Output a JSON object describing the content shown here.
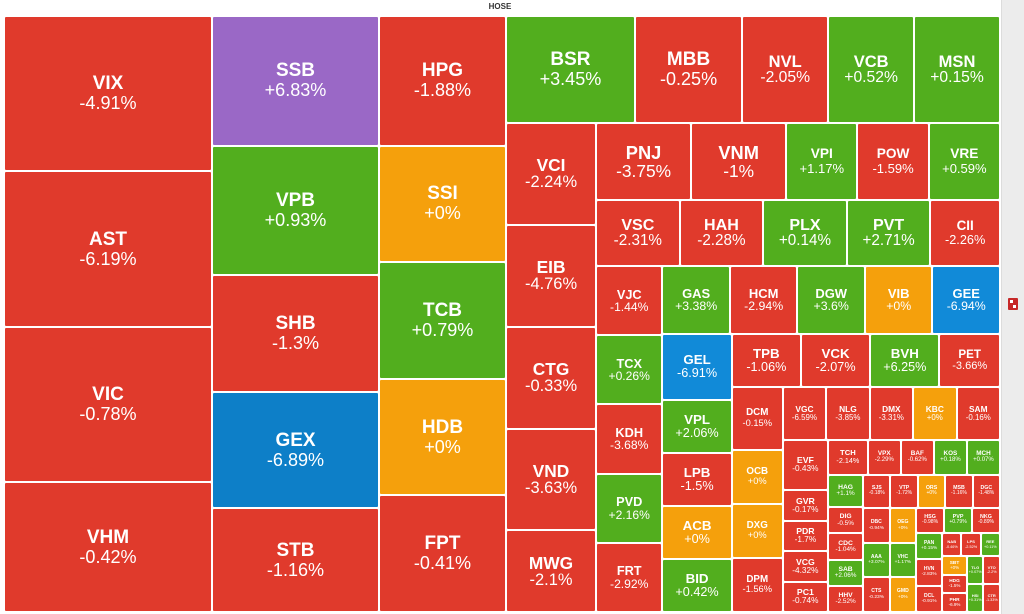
{
  "chart_data": {
    "type": "treemap",
    "title": "HOSE",
    "colors": {
      "down": "#e03a2c",
      "up": "#52ae1e",
      "flat": "#f5a00c",
      "ceiling": "#9a68c6",
      "floor": "#0d7fc8",
      "floor_alt": "#118ad8"
    },
    "tiles": [
      {
        "symbol": "VIX",
        "change": "-4.91%",
        "status": "down",
        "col": 0,
        "weight": 6
      },
      {
        "symbol": "AST",
        "change": "-6.19%",
        "status": "down",
        "col": 0,
        "weight": 6
      },
      {
        "symbol": "VIC",
        "change": "-0.78%",
        "status": "down",
        "col": 0,
        "weight": 6
      },
      {
        "symbol": "VHM",
        "change": "-0.42%",
        "status": "down",
        "col": 0,
        "weight": 5
      },
      {
        "symbol": "SSB",
        "change": "+6.83%",
        "status": "ceiling",
        "col": 1,
        "weight": 5
      },
      {
        "symbol": "VPB",
        "change": "+0.93%",
        "status": "up",
        "col": 1,
        "weight": 5
      },
      {
        "symbol": "SHB",
        "change": "-1.3%",
        "status": "down",
        "col": 1,
        "weight": 4.5
      },
      {
        "symbol": "GEX",
        "change": "-6.89%",
        "status": "floor",
        "col": 1,
        "weight": 4.5
      },
      {
        "symbol": "STB",
        "change": "-1.16%",
        "status": "down",
        "col": 1,
        "weight": 4
      },
      {
        "symbol": "HPG",
        "change": "-1.88%",
        "status": "down",
        "col": 2,
        "weight": 5
      },
      {
        "symbol": "SSI",
        "change": "+0%",
        "status": "flat",
        "col": 2,
        "weight": 4.5
      },
      {
        "symbol": "TCB",
        "change": "+0.79%",
        "status": "up",
        "col": 2,
        "weight": 4.5
      },
      {
        "symbol": "HDB",
        "change": "+0%",
        "status": "flat",
        "col": 2,
        "weight": 4.5
      },
      {
        "symbol": "FPT",
        "change": "-0.41%",
        "status": "down",
        "col": 2,
        "weight": 4.5
      },
      {
        "symbol": "BSR",
        "change": "+3.45%",
        "status": "up",
        "col": 3,
        "weight": 3
      },
      {
        "symbol": "MBB",
        "change": "-0.25%",
        "status": "down",
        "col": 3,
        "weight": 2.5
      },
      {
        "symbol": "NVL",
        "change": "-2.05%",
        "status": "down",
        "col": 3,
        "weight": 2
      },
      {
        "symbol": "VCB",
        "change": "+0.52%",
        "status": "up",
        "col": 3,
        "weight": 2
      },
      {
        "symbol": "MSN",
        "change": "+0.15%",
        "status": "up",
        "col": 3,
        "weight": 2
      },
      {
        "symbol": "VCI",
        "change": "-2.24%",
        "status": "down",
        "col": 3,
        "weight": 2
      },
      {
        "symbol": "EIB",
        "change": "-4.76%",
        "status": "down",
        "col": 3,
        "weight": 2
      },
      {
        "symbol": "CTG",
        "change": "-0.33%",
        "status": "down",
        "col": 3,
        "weight": 2
      },
      {
        "symbol": "VND",
        "change": "-3.63%",
        "status": "down",
        "col": 3,
        "weight": 2
      },
      {
        "symbol": "MWG",
        "change": "-2.1%",
        "status": "down",
        "col": 3,
        "weight": 1.6
      },
      {
        "symbol": "VPI",
        "change": "+1.17%",
        "status": "up",
        "col": 3,
        "weight": 1.2
      },
      {
        "symbol": "POW",
        "change": "-1.59%",
        "status": "down",
        "col": 3,
        "weight": 1.2
      },
      {
        "symbol": "VRE",
        "change": "+0.59%",
        "status": "up",
        "col": 3,
        "weight": 1.2
      },
      {
        "symbol": "VSC",
        "change": "-2.31%",
        "status": "down",
        "col": 3,
        "weight": 1.2
      },
      {
        "symbol": "HAH",
        "change": "-2.28%",
        "status": "down",
        "col": 3,
        "weight": 1.2
      },
      {
        "symbol": "PLX",
        "change": "+0.14%",
        "status": "up",
        "col": 3,
        "weight": 1.2
      },
      {
        "symbol": "PNJ",
        "change": "-3.75%",
        "status": "down",
        "col": 3,
        "weight": 1.6
      },
      {
        "symbol": "CII",
        "change": "-2.26%",
        "status": "down",
        "col": 3,
        "weight": 1
      },
      {
        "symbol": "VJC",
        "change": "-1.44%",
        "status": "down",
        "col": 3,
        "weight": 1
      },
      {
        "symbol": "TCX",
        "change": "+0.26%",
        "status": "up",
        "col": 3,
        "weight": 1
      },
      {
        "symbol": "KDH",
        "change": "-3.68%",
        "status": "down",
        "col": 3,
        "weight": 1
      },
      {
        "symbol": "PVD",
        "change": "+2.16%",
        "status": "up",
        "col": 3,
        "weight": 1
      },
      {
        "symbol": "FRT",
        "change": "-2.92%",
        "status": "down",
        "col": 3,
        "weight": 1
      },
      {
        "symbol": "VNM",
        "change": "-1%",
        "status": "down",
        "col": 3,
        "weight": 1.6
      },
      {
        "symbol": "GAS",
        "change": "+3.38%",
        "status": "up",
        "col": 3,
        "weight": 1
      },
      {
        "symbol": "HCM",
        "change": "-2.94%",
        "status": "down",
        "col": 3,
        "weight": 1
      },
      {
        "symbol": "PET",
        "change": "-3.66%",
        "status": "down",
        "col": 3,
        "weight": 0.7
      },
      {
        "symbol": "DCM",
        "change": "-0.15%",
        "status": "down",
        "col": 3,
        "weight": 0.7
      },
      {
        "symbol": "OCB",
        "change": "+0%",
        "status": "flat",
        "col": 3,
        "weight": 0.6
      },
      {
        "symbol": "DXG",
        "change": "+0%",
        "status": "flat",
        "col": 3,
        "weight": 0.6
      },
      {
        "symbol": "DPM",
        "change": "-1.56%",
        "status": "down",
        "col": 3,
        "weight": 0.6
      },
      {
        "symbol": "PVT",
        "change": "+2.71%",
        "status": "up",
        "col": 3,
        "weight": 1.2
      },
      {
        "symbol": "DGW",
        "change": "+3.6%",
        "status": "up",
        "col": 3,
        "weight": 1
      },
      {
        "symbol": "VPL",
        "change": "+2.06%",
        "status": "up",
        "col": 3,
        "weight": 0.8
      },
      {
        "symbol": "VGC",
        "change": "-6.59%",
        "status": "down",
        "col": 3,
        "weight": 0.5
      },
      {
        "symbol": "NLG",
        "change": "-3.85%",
        "status": "down",
        "col": 3,
        "weight": 0.5
      },
      {
        "symbol": "LPB",
        "change": "-1.5%",
        "status": "down",
        "col": 3,
        "weight": 0.8
      },
      {
        "symbol": "DMX",
        "change": "-3.31%",
        "status": "down",
        "col": 3,
        "weight": 0.5
      },
      {
        "symbol": "ACB",
        "change": "+0%",
        "status": "flat",
        "col": 3,
        "weight": 0.8
      },
      {
        "symbol": "VIB",
        "change": "+0%",
        "status": "flat",
        "col": 3,
        "weight": 1
      },
      {
        "symbol": "BID",
        "change": "+0.42%",
        "status": "up",
        "col": 3,
        "weight": 0.8
      },
      {
        "symbol": "TPB",
        "change": "-1.06%",
        "status": "down",
        "col": 3,
        "weight": 0.8
      },
      {
        "symbol": "KBC",
        "change": "+0%",
        "status": "flat",
        "col": 3,
        "weight": 0.5
      },
      {
        "symbol": "VCK",
        "change": "-2.07%",
        "status": "down",
        "col": 3,
        "weight": 0.8
      },
      {
        "symbol": "SAM",
        "change": "-0.16%",
        "status": "down",
        "col": 3,
        "weight": 0.5
      },
      {
        "symbol": "EVF",
        "change": "-0.43%",
        "status": "down",
        "col": 3,
        "weight": 0.5
      },
      {
        "symbol": "GEE",
        "change": "-6.94%",
        "status": "floor_alt",
        "col": 3,
        "weight": 1
      },
      {
        "symbol": "GEL",
        "change": "-6.91%",
        "status": "floor_alt",
        "col": 3,
        "weight": 1
      },
      {
        "symbol": "BVH",
        "change": "+6.25%",
        "status": "up",
        "col": 3,
        "weight": 0.8
      },
      {
        "symbol": "GVR",
        "change": "-0.17%",
        "status": "down",
        "col": 3,
        "weight": 0.3
      },
      {
        "symbol": "PDR",
        "change": "-1.7%",
        "status": "down",
        "col": 3,
        "weight": 0.3
      },
      {
        "symbol": "VCG",
        "change": "-4.32%",
        "status": "down",
        "col": 3,
        "weight": 0.3
      },
      {
        "symbol": "PC1",
        "change": "-0.74%",
        "status": "down",
        "col": 3,
        "weight": 0.3
      },
      {
        "symbol": "TCH",
        "change": "-2.14%",
        "status": "down",
        "col": 3,
        "weight": 0.3
      },
      {
        "symbol": "VPX",
        "change": "-2.29%",
        "status": "down",
        "col": 3,
        "weight": 0.25
      },
      {
        "symbol": "DIG",
        "change": "-0.5%",
        "status": "down",
        "col": 3,
        "weight": 0.2
      },
      {
        "symbol": "CDC",
        "change": "-1.04%",
        "status": "down",
        "col": 3,
        "weight": 0.2
      },
      {
        "symbol": "SAB",
        "change": "+2.06%",
        "status": "up",
        "col": 3,
        "weight": 0.2
      },
      {
        "symbol": "HHV",
        "change": "-2.52%",
        "status": "down",
        "col": 3,
        "weight": 0.2
      },
      {
        "symbol": "SJS",
        "change": "-0.18%",
        "status": "down",
        "col": 3,
        "weight": 0.2
      },
      {
        "symbol": "VTP",
        "change": "-1.72%",
        "status": "down",
        "col": 3,
        "weight": 0.2
      },
      {
        "symbol": "BAF",
        "change": "-0.62%",
        "status": "down",
        "col": 3,
        "weight": 0.25
      },
      {
        "symbol": "ORS",
        "change": "+0%",
        "status": "flat",
        "col": 3,
        "weight": 0.2
      },
      {
        "symbol": "MSB",
        "change": "-1.16%",
        "status": "down",
        "col": 3,
        "weight": 0.2
      },
      {
        "symbol": "DGC",
        "change": "-1.48%",
        "status": "down",
        "col": 3,
        "weight": 0.2
      },
      {
        "symbol": "DBC",
        "change": "-0.94%",
        "status": "down",
        "col": 3,
        "weight": 0.2
      },
      {
        "symbol": "AAA",
        "change": "+3.07%",
        "status": "up",
        "col": 3,
        "weight": 0.2
      },
      {
        "symbol": "CTS",
        "change": "-0.23%",
        "status": "down",
        "col": 3,
        "weight": 0.2
      },
      {
        "symbol": "KOS",
        "change": "+0.18%",
        "status": "up",
        "col": 3,
        "weight": 0.25
      },
      {
        "symbol": "HSG",
        "change": "-0.98%",
        "status": "down",
        "col": 3,
        "weight": 0.15
      },
      {
        "symbol": "PVP",
        "change": "+0.79%",
        "status": "up",
        "col": 3,
        "weight": 0.15
      },
      {
        "symbol": "NKG",
        "change": "-0.89%",
        "status": "down",
        "col": 3,
        "weight": 0.15
      },
      {
        "symbol": "PAN",
        "change": "+0.15%",
        "status": "up",
        "col": 3,
        "weight": 0.15
      },
      {
        "symbol": "HVN",
        "change": "-2.83%",
        "status": "down",
        "col": 3,
        "weight": 0.15
      },
      {
        "symbol": "DCL",
        "change": "-0.91%",
        "status": "down",
        "col": 3,
        "weight": 0.15
      },
      {
        "symbol": "MCH",
        "change": "+0.07%",
        "status": "up",
        "col": 3,
        "weight": 0.25
      },
      {
        "symbol": "NAB",
        "change": "-0.46%",
        "status": "down",
        "col": 3,
        "weight": 0.1
      },
      {
        "symbol": "HAG",
        "change": "+1.1%",
        "status": "up",
        "col": 3,
        "weight": 0.25
      },
      {
        "symbol": "LPS",
        "change": "-2.52%",
        "status": "down",
        "col": 3,
        "weight": 0.1
      },
      {
        "symbol": "REE",
        "change": "+0.11%",
        "status": "up",
        "col": 3,
        "weight": 0.1
      },
      {
        "symbol": "OEG",
        "change": "+0%",
        "status": "flat",
        "col": 3,
        "weight": 0.2
      },
      {
        "symbol": "SBT",
        "change": "+0%",
        "status": "flat",
        "col": 3,
        "weight": 0.1
      },
      {
        "symbol": "HDG",
        "change": "-1.5%",
        "status": "down",
        "col": 3,
        "weight": 0.1
      },
      {
        "symbol": "VHC",
        "change": "+1.17%",
        "status": "up",
        "col": 3,
        "weight": 0.2
      },
      {
        "symbol": "PHR",
        "change": "-6.9%",
        "status": "down",
        "col": 3,
        "weight": 0.1
      },
      {
        "symbol": "TLG",
        "change": "+0.07%",
        "status": "up",
        "col": 3,
        "weight": 0.1
      },
      {
        "symbol": "GMD",
        "change": "+0%",
        "status": "flat",
        "col": 3,
        "weight": 0.2
      },
      {
        "symbol": "VTO",
        "change": "-2.2%",
        "status": "down",
        "col": 3,
        "weight": 0.1
      },
      {
        "symbol": "HSI",
        "change": "+0.31%",
        "status": "up",
        "col": 3,
        "weight": 0.1
      },
      {
        "symbol": "CTR",
        "change": "-1.33%",
        "status": "down",
        "col": 3,
        "weight": 0.1
      }
    ]
  }
}
